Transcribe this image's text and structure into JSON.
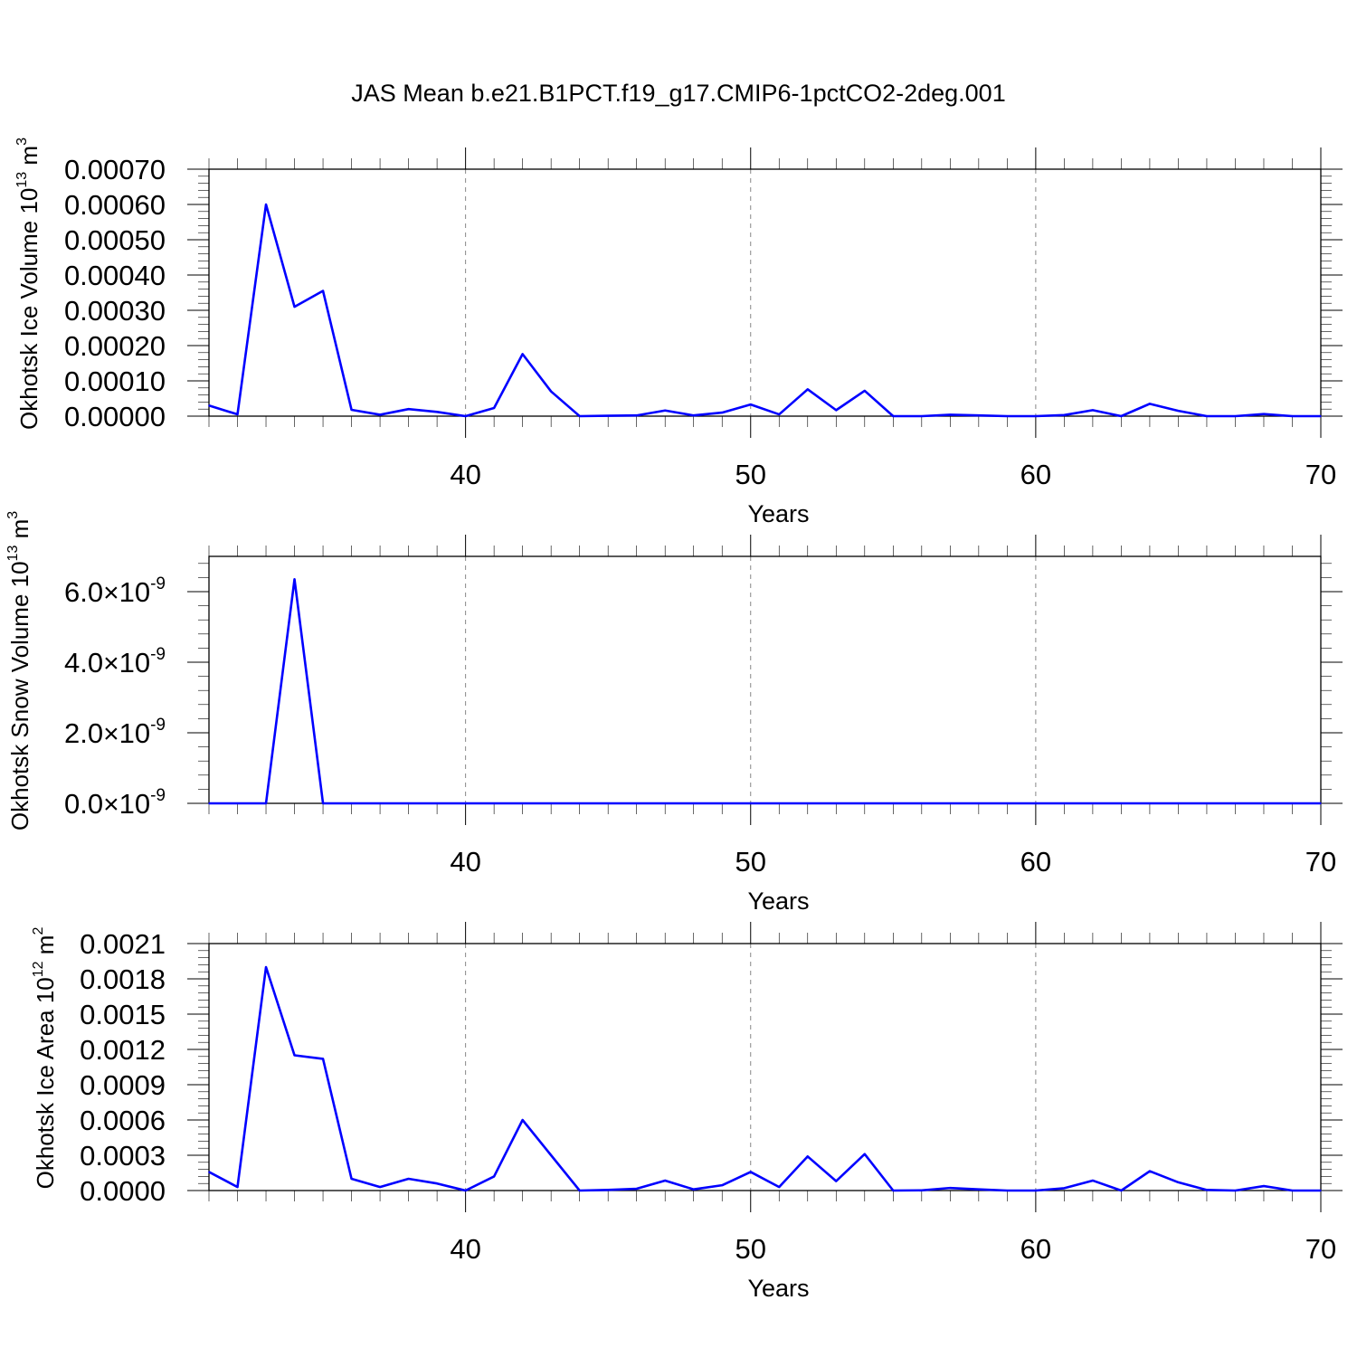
{
  "title": "JAS Mean b.e21.B1PCT.f19_g17.CMIP6-1pctCO2-2deg.001",
  "colors": {
    "line": "#0000ff",
    "grid": "#888888",
    "axis": "#000000"
  },
  "chart_data": [
    {
      "type": "line",
      "xlabel": "Years",
      "ylabel": "Okhotsk Ice Volume 10",
      "ylabel_sup": "13",
      "ylabel_unit": "m",
      "ylabel_unit_sup": "3",
      "xlim": [
        31,
        70
      ],
      "ylim": [
        0,
        0.0007
      ],
      "x_ticks": [
        "40",
        "50",
        "60",
        "70"
      ],
      "y_ticks": [
        "0.00000",
        "0.00010",
        "0.00020",
        "0.00030",
        "0.00040",
        "0.00050",
        "0.00060",
        "0.00070"
      ],
      "grid": "vertical dashed at major x ticks",
      "x": [
        31,
        32,
        33,
        34,
        35,
        36,
        37,
        38,
        39,
        40,
        41,
        42,
        43,
        44,
        45,
        46,
        47,
        48,
        49,
        50,
        51,
        52,
        53,
        54,
        55,
        56,
        57,
        58,
        59,
        60,
        61,
        62,
        63,
        64,
        65,
        66,
        67,
        68,
        69,
        70
      ],
      "values": [
        3e-05,
        5e-06,
        0.0006,
        0.00031,
        0.000355,
        1.8e-05,
        4e-06,
        2e-05,
        1.2e-05,
        0.0,
        2.3e-05,
        0.000176,
        7e-05,
        0.0,
        1e-06,
        2e-06,
        1.6e-05,
        2e-06,
        1e-05,
        3.3e-05,
        5e-06,
        7.6e-05,
        1.7e-05,
        7.2e-05,
        0.0,
        0.0,
        4e-06,
        2e-06,
        0.0,
        0.0,
        3e-06,
        1.7e-05,
        0.0,
        3.5e-05,
        1.5e-05,
        0.0,
        0.0,
        6e-06,
        0.0,
        0.0
      ]
    },
    {
      "type": "line",
      "xlabel": "Years",
      "ylabel": "Okhotsk Snow Volume 10",
      "ylabel_sup": "13",
      "ylabel_unit": "m",
      "ylabel_unit_sup": "3",
      "xlim": [
        31,
        70
      ],
      "ylim": [
        0,
        7e-09
      ],
      "x_ticks": [
        "40",
        "50",
        "60",
        "70"
      ],
      "y_ticks": [
        {
          "mantissa": "0.0",
          "times": "×",
          "base": "10",
          "exp": "-9"
        },
        {
          "mantissa": "2.0",
          "times": "×",
          "base": "10",
          "exp": "-9"
        },
        {
          "mantissa": "4.0",
          "times": "×",
          "base": "10",
          "exp": "-9"
        },
        {
          "mantissa": "6.0",
          "times": "×",
          "base": "10",
          "exp": "-9"
        }
      ],
      "grid": "vertical dashed at major x ticks",
      "x": [
        31,
        32,
        33,
        34,
        35,
        36,
        37,
        38,
        39,
        40,
        41,
        42,
        43,
        44,
        45,
        46,
        47,
        48,
        49,
        50,
        51,
        52,
        53,
        54,
        55,
        56,
        57,
        58,
        59,
        60,
        61,
        62,
        63,
        64,
        65,
        66,
        67,
        68,
        69,
        70
      ],
      "values": [
        0,
        0,
        0,
        6.35e-09,
        0,
        0,
        0,
        0,
        0,
        0,
        0,
        0,
        0,
        0,
        0,
        0,
        0,
        0,
        0,
        0,
        0,
        0,
        0,
        0,
        0,
        0,
        0,
        0,
        0,
        0,
        0,
        0,
        0,
        0,
        0,
        0,
        0,
        0,
        0,
        0
      ]
    },
    {
      "type": "line",
      "xlabel": "Years",
      "ylabel": "Okhotsk Ice Area 10",
      "ylabel_sup": "12",
      "ylabel_unit": "m",
      "ylabel_unit_sup": "2",
      "xlim": [
        31,
        70
      ],
      "ylim": [
        0,
        0.0021
      ],
      "x_ticks": [
        "40",
        "50",
        "60",
        "70"
      ],
      "y_ticks": [
        "0.0000",
        "0.0003",
        "0.0006",
        "0.0009",
        "0.0012",
        "0.0015",
        "0.0018",
        "0.0021"
      ],
      "grid": "vertical dashed at major x ticks",
      "x": [
        31,
        32,
        33,
        34,
        35,
        36,
        37,
        38,
        39,
        40,
        41,
        42,
        43,
        44,
        45,
        46,
        47,
        48,
        49,
        50,
        51,
        52,
        53,
        54,
        55,
        56,
        57,
        58,
        59,
        60,
        61,
        62,
        63,
        64,
        65,
        66,
        67,
        68,
        69,
        70
      ],
      "values": [
        0.000158,
        3e-05,
        0.0019,
        0.00115,
        0.00112,
        0.0001,
        3e-05,
        0.0001,
        6e-05,
        0.0,
        0.00012,
        0.0006,
        0.0003,
        0.0,
        5e-06,
        1.5e-05,
        8.5e-05,
        1e-05,
        4.5e-05,
        0.000158,
        3e-05,
        0.00029,
        8e-05,
        0.00031,
        0.0,
        2e-06,
        2.2e-05,
        1e-05,
        0.0,
        0.0,
        2e-05,
        8.5e-05,
        0.0,
        0.000165,
        7e-05,
        5e-06,
        0.0,
        3.8e-05,
        0.0,
        0.0
      ]
    }
  ]
}
